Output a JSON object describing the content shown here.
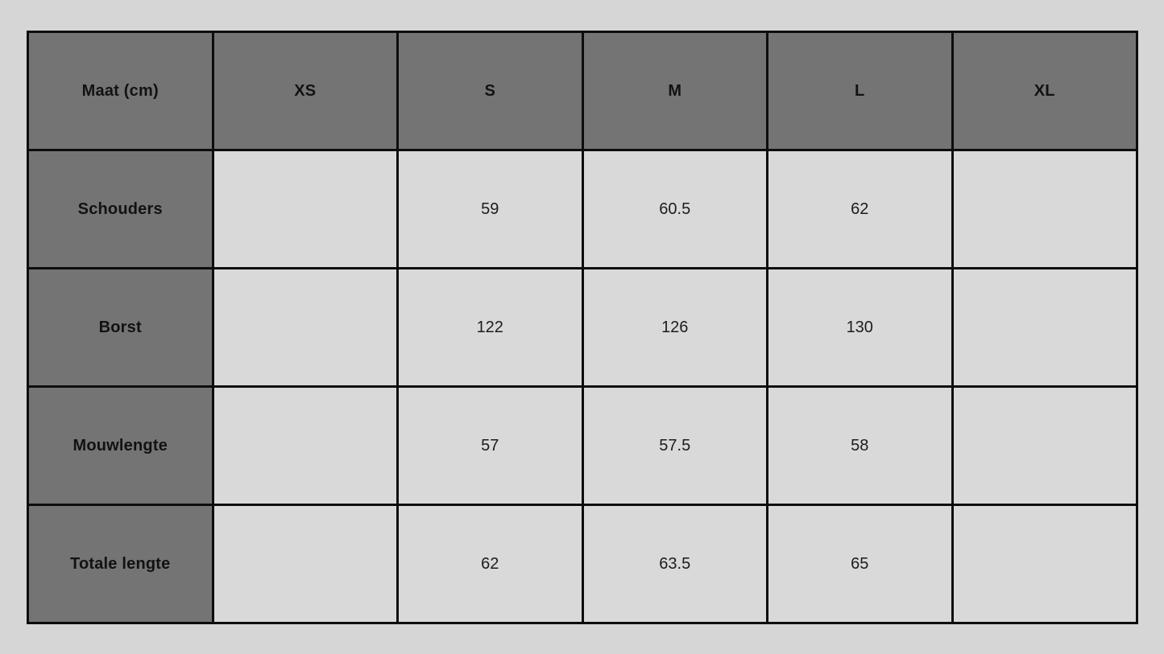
{
  "chart_data": {
    "type": "table",
    "title": "Maat (cm)",
    "categories": [
      "XS",
      "S",
      "M",
      "L",
      "XL"
    ],
    "series": [
      {
        "name": "Schouders",
        "values": [
          null,
          59,
          60.5,
          62,
          null
        ]
      },
      {
        "name": "Borst",
        "values": [
          null,
          122,
          126,
          130,
          null
        ]
      },
      {
        "name": "Mouwlengte",
        "values": [
          null,
          57,
          57.5,
          58,
          null
        ]
      },
      {
        "name": "Totale lengte",
        "values": [
          null,
          62,
          63.5,
          65,
          null
        ]
      }
    ]
  },
  "table": {
    "corner_header": "Maat (cm)",
    "columns": [
      "XS",
      "S",
      "M",
      "L",
      "XL"
    ],
    "rows": [
      {
        "label": "Schouders",
        "values": [
          "",
          "59",
          "60.5",
          "62",
          ""
        ]
      },
      {
        "label": "Borst",
        "values": [
          "",
          "122",
          "126",
          "130",
          ""
        ]
      },
      {
        "label": "Mouwlengte",
        "values": [
          "",
          "57",
          "57.5",
          "58",
          ""
        ]
      },
      {
        "label": "Totale lengte",
        "values": [
          "",
          "62",
          "63.5",
          "65",
          ""
        ]
      }
    ],
    "colors": {
      "header_bg": "#747474",
      "cell_bg": "#d9d9d9",
      "page_bg": "#d6d6d6",
      "border": "#0d0d0d",
      "header_text": "#121212",
      "cell_text": "#1c1c1c"
    }
  }
}
